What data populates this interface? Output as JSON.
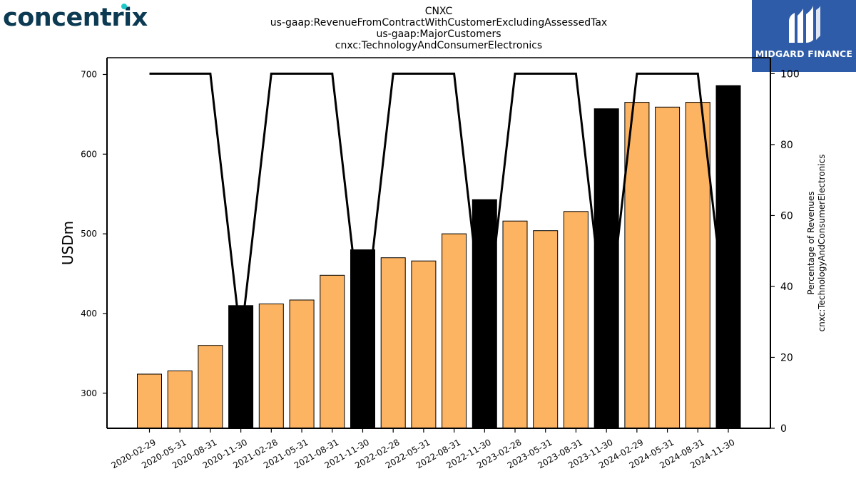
{
  "logos": {
    "left_text": "concentrix",
    "left_color": "#0b3a52",
    "left_accent": "#1ec8c8",
    "right_text": "MIDGARD FINANCE",
    "right_bg": "#2f5ca8"
  },
  "chart_data": {
    "type": "bar",
    "title_lines": [
      "CNXC",
      "us-gaap:RevenueFromContractWithCustomerExcludingAssessedTax",
      "us-gaap:MajorCustomers",
      "cnxc:TechnologyAndConsumerElectronics"
    ],
    "ylabel": "USDm",
    "y2label_lines": [
      "Percentage of Revenues",
      "cnxc:TechnologyAndConsumerElectronics"
    ],
    "ylim": [
      256,
      721
    ],
    "y2lim": [
      0,
      104.5
    ],
    "yticks": [
      300,
      400,
      500,
      600,
      700
    ],
    "y2ticks": [
      0,
      20,
      40,
      60,
      80,
      100
    ],
    "categories": [
      "2020-02-29",
      "2020-05-31",
      "2020-08-31",
      "2020-11-30",
      "2021-02-28",
      "2021-05-31",
      "2021-08-31",
      "2021-11-30",
      "2022-02-28",
      "2022-05-31",
      "2022-08-31",
      "2022-11-30",
      "2023-02-28",
      "2023-05-31",
      "2023-08-31",
      "2023-11-30",
      "2024-02-29",
      "2024-05-31",
      "2024-08-31",
      "2024-11-30"
    ],
    "values": [
      324,
      328,
      360,
      410,
      412,
      417,
      448,
      480,
      470,
      466,
      500,
      543,
      516,
      504,
      528,
      657,
      665,
      659,
      665,
      686
    ],
    "annual": [
      false,
      false,
      false,
      true,
      false,
      false,
      false,
      true,
      false,
      false,
      false,
      true,
      false,
      false,
      false,
      true,
      false,
      false,
      false,
      true
    ],
    "percentages": [
      100,
      100,
      100,
      25,
      100,
      100,
      100,
      25,
      100,
      100,
      100,
      25,
      100,
      100,
      100,
      25,
      100,
      100,
      100,
      25
    ],
    "colors": {
      "quarter_bar": "#fdb462",
      "annual_bar": "#000000",
      "line": "#000000"
    },
    "grid": false,
    "legend": "none"
  }
}
